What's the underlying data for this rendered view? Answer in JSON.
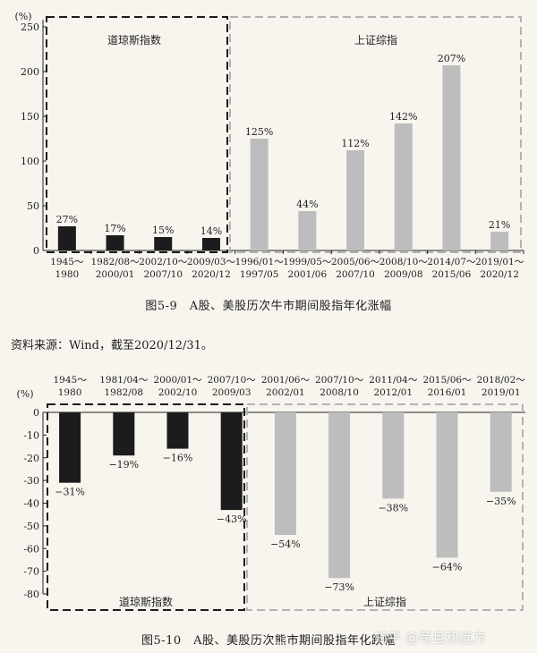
{
  "figure_5_9": {
    "caption": "图5-9　A股、美股历次牛市期间股指年化涨幅"
  },
  "source_note": "资料来源：Wind，截至2020/12/31。",
  "figure_5_10": {
    "caption": "图5-10　A股、美股历次熊市期间股指年化跌幅"
  },
  "watermark": "知乎 @苟且和远方",
  "colors": {
    "us_bar": "#1c1c1c",
    "cn_bar": "#bdbdbd",
    "cn_box": "#b3b3b3",
    "us_box": "#1c1c1c"
  },
  "chart_data": [
    {
      "type": "bar",
      "unit_label": "(%)",
      "ylim": [
        0,
        250
      ],
      "yticks": [
        0,
        50,
        100,
        150,
        200,
        250
      ],
      "groups": [
        {
          "name": "道琼斯指数",
          "color": "#1c1c1c",
          "bars": [
            {
              "line1": "1945～",
              "line2": "1980",
              "value": 27,
              "label": "27%"
            },
            {
              "line1": "1982/08～",
              "line2": "2000/01",
              "value": 17,
              "label": "17%"
            },
            {
              "line1": "2002/10～",
              "line2": "2007/10",
              "value": 15,
              "label": "15%"
            },
            {
              "line1": "2009/03～",
              "line2": "2020/12",
              "value": 14,
              "label": "14%"
            }
          ]
        },
        {
          "name": "上证综指",
          "color": "#bdbdbd",
          "bars": [
            {
              "line1": "1996/01～",
              "line2": "1997/05",
              "value": 125,
              "label": "125%"
            },
            {
              "line1": "1999/05～",
              "line2": "2001/06",
              "value": 44,
              "label": "44%"
            },
            {
              "line1": "2005/06～",
              "line2": "2007/10",
              "value": 112,
              "label": "112%"
            },
            {
              "line1": "2008/10～",
              "line2": "2009/08",
              "value": 142,
              "label": "142%"
            },
            {
              "line1": "2014/07～",
              "line2": "2015/06",
              "value": 207,
              "label": "207%"
            },
            {
              "line1": "2019/01～",
              "line2": "2020/12",
              "value": 21,
              "label": "21%"
            }
          ]
        }
      ]
    },
    {
      "type": "bar",
      "unit_label": "(%)",
      "ylim": [
        -80,
        0
      ],
      "yticks": [
        0,
        -10,
        -20,
        -30,
        -40,
        -50,
        -60,
        -70,
        -80
      ],
      "groups": [
        {
          "name": "道琼斯指数",
          "color": "#1c1c1c",
          "bars": [
            {
              "line1": "1945～",
              "line2": "1980",
              "value": -31,
              "label": "−31%"
            },
            {
              "line1": "1981/04～",
              "line2": "1982/08",
              "value": -19,
              "label": "−19%"
            },
            {
              "line1": "2000/01～",
              "line2": "2002/10",
              "value": -16,
              "label": "−16%"
            },
            {
              "line1": "2007/10～",
              "line2": "2009/03",
              "value": -43,
              "label": "−43%"
            }
          ]
        },
        {
          "name": "上证综指",
          "color": "#bdbdbd",
          "bars": [
            {
              "line1": "2001/06～",
              "line2": "2002/01",
              "value": -54,
              "label": "−54%"
            },
            {
              "line1": "2007/10～",
              "line2": "2008/10",
              "value": -73,
              "label": "−73%"
            },
            {
              "line1": "2011/04～",
              "line2": "2012/01",
              "value": -38,
              "label": "−38%"
            },
            {
              "line1": "2015/06～",
              "line2": "2016/01",
              "value": -64,
              "label": "−64%"
            },
            {
              "line1": "2018/02～",
              "line2": "2019/01",
              "value": -35,
              "label": "−35%"
            }
          ]
        }
      ]
    }
  ]
}
